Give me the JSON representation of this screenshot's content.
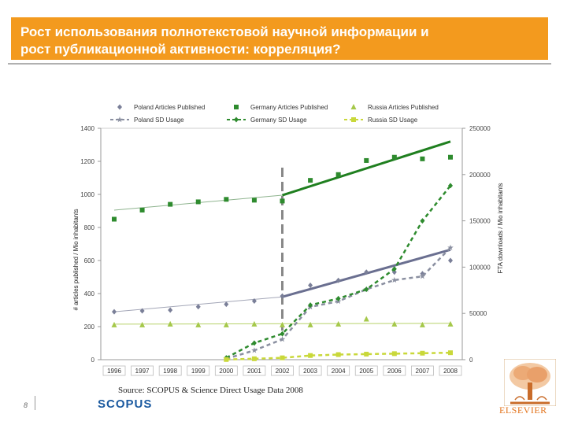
{
  "slide": {
    "title_line1": "Рост использования полнотекстовой научной информации и",
    "title_line2": "рост публикационной активности: корреляция?",
    "source": "Source:  SCOPUS & Science Direct Usage Data 2008",
    "page_number": "8",
    "scopus_logo_text": "SCOPUS",
    "elsevier_logo_text": "ELSEVIER",
    "colors": {
      "title_bar": "#f39a1e",
      "elsevier": "#e3731b",
      "scopus": "#1b5aa0"
    }
  },
  "chart_data": {
    "type": "line",
    "title": "",
    "ylabel": "# articles published / Mio inhabitants",
    "y2label": "FTA downloads / Mio inhabitants",
    "categories": [
      "1996",
      "1997",
      "1998",
      "1999",
      "2000",
      "2001",
      "2002",
      "2003",
      "2004",
      "2005",
      "2006",
      "2007",
      "2008"
    ],
    "ylim": [
      0,
      1400
    ],
    "yticks": [
      0,
      200,
      400,
      600,
      800,
      1000,
      1200,
      1400
    ],
    "y2lim": [
      0,
      250000
    ],
    "y2ticks": [
      0,
      50000,
      100000,
      150000,
      200000,
      250000
    ],
    "legend_position": "top",
    "series": [
      {
        "name": "Poland Articles Published",
        "axis": "left",
        "marker": "diamond",
        "color": "#7a7f98",
        "values": [
          290,
          295,
          300,
          320,
          335,
          355,
          385,
          450,
          480,
          530,
          530,
          520,
          600
        ]
      },
      {
        "name": "Germany Articles Published",
        "axis": "left",
        "marker": "square",
        "color": "#2e8b2e",
        "values": [
          850,
          905,
          940,
          955,
          970,
          965,
          960,
          1085,
          1120,
          1205,
          1225,
          1215,
          1225
        ]
      },
      {
        "name": "Russia Articles Published",
        "axis": "left",
        "marker": "triangle",
        "color": "#a5c84a",
        "values": [
          210,
          210,
          215,
          210,
          210,
          215,
          210,
          210,
          215,
          245,
          215,
          210,
          215
        ]
      },
      {
        "name": "Poland SD Usage",
        "axis": "right",
        "marker": "star",
        "color": "#8a8fa0",
        "dashed": true,
        "values": [
          null,
          null,
          null,
          null,
          1000,
          10000,
          22000,
          57000,
          63000,
          76000,
          86000,
          90000,
          121000
        ]
      },
      {
        "name": "Germany SD Usage",
        "axis": "right",
        "marker": "diamond",
        "color": "#2e8b2e",
        "dashed": true,
        "values": [
          null,
          null,
          null,
          null,
          2000,
          18000,
          28000,
          59000,
          66000,
          76000,
          98000,
          150000,
          188000
        ]
      },
      {
        "name": "Russia SD Usage",
        "axis": "right",
        "marker": "square",
        "color": "#c9d83a",
        "dashed": true,
        "values": [
          null,
          null,
          null,
          null,
          200,
          1000,
          2000,
          4500,
          5500,
          6000,
          6500,
          7000,
          7500
        ]
      }
    ],
    "trend_lines": [
      {
        "series": "Poland Articles Published",
        "segments": [
          [
            [
              1996,
              290
            ],
            [
              2002,
              380
            ]
          ],
          [
            [
              2002,
              380
            ],
            [
              2008,
              665
            ]
          ]
        ]
      },
      {
        "series": "Germany Articles Published",
        "segments": [
          [
            [
              1996,
              905
            ],
            [
              2002,
              995
            ]
          ],
          [
            [
              2002,
              995
            ],
            [
              2008,
              1320
            ]
          ]
        ]
      },
      {
        "series": "Russia Articles Published",
        "segments": [
          [
            [
              1996,
              215
            ],
            [
              2008,
              220
            ]
          ]
        ]
      }
    ],
    "marker_line_year": 2002
  }
}
